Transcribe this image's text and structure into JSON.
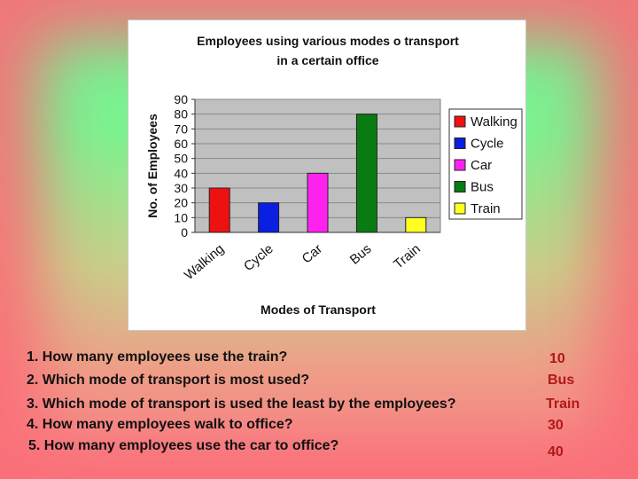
{
  "chart_data": {
    "type": "bar",
    "title_line1": "Employees using various modes o transport",
    "title_line2": "in a certain office",
    "xlabel": "Modes of Transport",
    "ylabel": "No. of Employees",
    "ylim": [
      0,
      90
    ],
    "yticks": [
      "0",
      "10",
      "20",
      "30",
      "40",
      "50",
      "60",
      "70",
      "80",
      "90"
    ],
    "grid": true,
    "legend_position": "right",
    "categories": [
      "Walking",
      "Cycle",
      "Car",
      "Bus",
      "Train"
    ],
    "values": [
      30,
      20,
      40,
      80,
      10
    ],
    "colors": [
      "#ee1111",
      "#0a1fe0",
      "#ff22ee",
      "#0a7a12",
      "#ffff22"
    ],
    "plot_background": "#c0c0c0"
  },
  "questions": [
    {
      "q": "1. How many employees use the train?",
      "a": "10"
    },
    {
      "q": "2. Which mode of transport is most used?",
      "a": "Bus"
    },
    {
      "q": "3. Which mode of transport is used the least by the employees?",
      "a": "Train"
    },
    {
      "q": "4. How many employees walk to office?",
      "a": "30"
    },
    {
      "q": "5. How many employees use the car to office?",
      "a": "40"
    }
  ]
}
